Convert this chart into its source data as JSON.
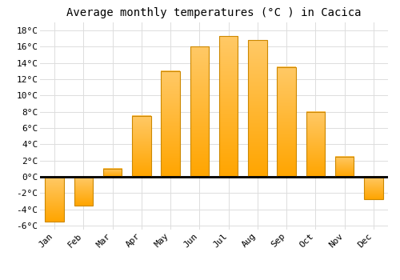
{
  "title": "Average monthly temperatures (°C ) in Cacica",
  "months": [
    "Jan",
    "Feb",
    "Mar",
    "Apr",
    "May",
    "Jun",
    "Jul",
    "Aug",
    "Sep",
    "Oct",
    "Nov",
    "Dec"
  ],
  "values": [
    -5.5,
    -3.5,
    1.0,
    7.5,
    13.0,
    16.0,
    17.3,
    16.8,
    13.5,
    8.0,
    2.5,
    -2.8
  ],
  "bar_color": "#FFA500",
  "bar_edge_color": "#CC8800",
  "ylim": [
    -6.5,
    19
  ],
  "yticks": [
    -6,
    -4,
    -2,
    0,
    2,
    4,
    6,
    8,
    10,
    12,
    14,
    16,
    18
  ],
  "ytick_labels": [
    "-6°C",
    "-4°C",
    "-2°C",
    "0°C",
    "2°C",
    "4°C",
    "6°C",
    "8°C",
    "10°C",
    "12°C",
    "14°C",
    "16°C",
    "18°C"
  ],
  "bg_color": "#ffffff",
  "grid_color": "#dddddd",
  "title_fontsize": 10,
  "tick_fontsize": 8,
  "bar_width": 0.65
}
